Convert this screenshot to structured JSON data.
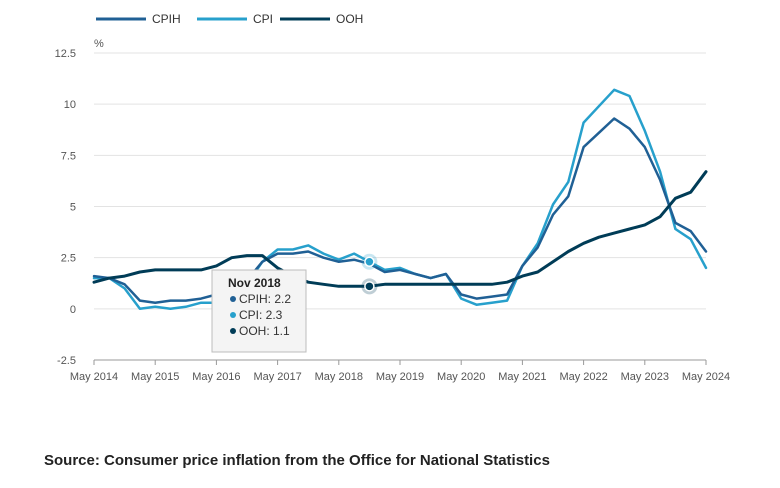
{
  "chart_data": {
    "type": "line",
    "ylabel": "%",
    "ylim": [
      -2.5,
      12.5
    ],
    "yticks": [
      -2.5,
      0,
      2.5,
      5,
      7.5,
      10,
      12.5
    ],
    "ytick_labels": [
      "-2.5",
      "0",
      "2.5",
      "5",
      "7.5",
      "10",
      "12.5"
    ],
    "xlim": [
      "2014-05",
      "2024-05"
    ],
    "xticks": [
      "2014-05",
      "2015-05",
      "2016-05",
      "2017-05",
      "2018-05",
      "2019-05",
      "2020-05",
      "2021-05",
      "2022-05",
      "2023-05",
      "2024-05"
    ],
    "xtick_labels": [
      "May 2014",
      "May 2015",
      "May 2016",
      "May 2017",
      "May 2018",
      "May 2019",
      "May 2020",
      "May 2021",
      "May 2022",
      "May 2023",
      "May 2024"
    ],
    "grid": "horizontal",
    "legend_position": "top-left",
    "colors": {
      "CPIH": "#206095",
      "CPI": "#27a0cc",
      "OOH": "#003c57"
    },
    "series": [
      {
        "name": "CPIH",
        "points": [
          [
            "2014-05",
            1.6
          ],
          [
            "2014-08",
            1.5
          ],
          [
            "2014-11",
            1.2
          ],
          [
            "2015-02",
            0.4
          ],
          [
            "2015-05",
            0.3
          ],
          [
            "2015-08",
            0.4
          ],
          [
            "2015-11",
            0.4
          ],
          [
            "2016-02",
            0.5
          ],
          [
            "2016-05",
            0.7
          ],
          [
            "2016-08",
            0.9
          ],
          [
            "2016-11",
            1.4
          ],
          [
            "2017-02",
            2.3
          ],
          [
            "2017-05",
            2.7
          ],
          [
            "2017-08",
            2.7
          ],
          [
            "2017-11",
            2.8
          ],
          [
            "2018-02",
            2.5
          ],
          [
            "2018-05",
            2.3
          ],
          [
            "2018-08",
            2.4
          ],
          [
            "2018-11",
            2.2
          ],
          [
            "2019-02",
            1.8
          ],
          [
            "2019-05",
            1.9
          ],
          [
            "2019-08",
            1.7
          ],
          [
            "2019-11",
            1.5
          ],
          [
            "2020-02",
            1.7
          ],
          [
            "2020-05",
            0.7
          ],
          [
            "2020-08",
            0.5
          ],
          [
            "2020-11",
            0.6
          ],
          [
            "2021-02",
            0.7
          ],
          [
            "2021-05",
            2.1
          ],
          [
            "2021-08",
            3.0
          ],
          [
            "2021-11",
            4.6
          ],
          [
            "2022-02",
            5.5
          ],
          [
            "2022-05",
            7.9
          ],
          [
            "2022-08",
            8.6
          ],
          [
            "2022-11",
            9.3
          ],
          [
            "2023-02",
            8.8
          ],
          [
            "2023-05",
            7.9
          ],
          [
            "2023-08",
            6.3
          ],
          [
            "2023-11",
            4.2
          ],
          [
            "2024-02",
            3.8
          ],
          [
            "2024-05",
            2.8
          ]
        ]
      },
      {
        "name": "CPI",
        "points": [
          [
            "2014-05",
            1.5
          ],
          [
            "2014-08",
            1.5
          ],
          [
            "2014-11",
            1.0
          ],
          [
            "2015-02",
            0.0
          ],
          [
            "2015-05",
            0.1
          ],
          [
            "2015-08",
            0.0
          ],
          [
            "2015-11",
            0.1
          ],
          [
            "2016-02",
            0.3
          ],
          [
            "2016-05",
            0.3
          ],
          [
            "2016-08",
            0.6
          ],
          [
            "2016-11",
            1.2
          ],
          [
            "2017-02",
            2.3
          ],
          [
            "2017-05",
            2.9
          ],
          [
            "2017-08",
            2.9
          ],
          [
            "2017-11",
            3.1
          ],
          [
            "2018-02",
            2.7
          ],
          [
            "2018-05",
            2.4
          ],
          [
            "2018-08",
            2.7
          ],
          [
            "2018-11",
            2.3
          ],
          [
            "2019-02",
            1.9
          ],
          [
            "2019-05",
            2.0
          ],
          [
            "2019-08",
            1.7
          ],
          [
            "2019-11",
            1.5
          ],
          [
            "2020-02",
            1.7
          ],
          [
            "2020-05",
            0.5
          ],
          [
            "2020-08",
            0.2
          ],
          [
            "2020-11",
            0.3
          ],
          [
            "2021-02",
            0.4
          ],
          [
            "2021-05",
            2.1
          ],
          [
            "2021-08",
            3.2
          ],
          [
            "2021-11",
            5.1
          ],
          [
            "2022-02",
            6.2
          ],
          [
            "2022-05",
            9.1
          ],
          [
            "2022-08",
            9.9
          ],
          [
            "2022-11",
            10.7
          ],
          [
            "2023-02",
            10.4
          ],
          [
            "2023-05",
            8.7
          ],
          [
            "2023-08",
            6.7
          ],
          [
            "2023-11",
            3.9
          ],
          [
            "2024-02",
            3.4
          ],
          [
            "2024-05",
            2.0
          ]
        ]
      },
      {
        "name": "OOH",
        "points": [
          [
            "2014-05",
            1.3
          ],
          [
            "2014-08",
            1.5
          ],
          [
            "2014-11",
            1.6
          ],
          [
            "2015-02",
            1.8
          ],
          [
            "2015-05",
            1.9
          ],
          [
            "2015-08",
            1.9
          ],
          [
            "2015-11",
            1.9
          ],
          [
            "2016-02",
            1.9
          ],
          [
            "2016-05",
            2.1
          ],
          [
            "2016-08",
            2.5
          ],
          [
            "2016-11",
            2.6
          ],
          [
            "2017-02",
            2.6
          ],
          [
            "2017-05",
            2.0
          ],
          [
            "2017-08",
            1.6
          ],
          [
            "2017-11",
            1.3
          ],
          [
            "2018-02",
            1.2
          ],
          [
            "2018-05",
            1.1
          ],
          [
            "2018-08",
            1.1
          ],
          [
            "2018-11",
            1.1
          ],
          [
            "2019-02",
            1.2
          ],
          [
            "2019-05",
            1.2
          ],
          [
            "2019-08",
            1.2
          ],
          [
            "2019-11",
            1.2
          ],
          [
            "2020-02",
            1.2
          ],
          [
            "2020-05",
            1.2
          ],
          [
            "2020-08",
            1.2
          ],
          [
            "2020-11",
            1.2
          ],
          [
            "2021-02",
            1.3
          ],
          [
            "2021-05",
            1.6
          ],
          [
            "2021-08",
            1.8
          ],
          [
            "2021-11",
            2.3
          ],
          [
            "2022-02",
            2.8
          ],
          [
            "2022-05",
            3.2
          ],
          [
            "2022-08",
            3.5
          ],
          [
            "2022-11",
            3.7
          ],
          [
            "2023-02",
            3.9
          ],
          [
            "2023-05",
            4.1
          ],
          [
            "2023-08",
            4.5
          ],
          [
            "2023-11",
            5.4
          ],
          [
            "2024-02",
            5.7
          ],
          [
            "2024-05",
            6.7
          ]
        ]
      }
    ],
    "tooltip": {
      "title": "Nov 2018",
      "date": "2018-11",
      "rows": [
        {
          "series": "CPIH",
          "text": "CPIH: 2.2",
          "value": 2.2
        },
        {
          "series": "CPI",
          "text": "CPI: 2.3",
          "value": 2.3
        },
        {
          "series": "OOH",
          "text": "OOH: 1.1",
          "value": 1.1
        }
      ]
    }
  },
  "source": "Source: Consumer price inflation from the Office for National Statistics"
}
